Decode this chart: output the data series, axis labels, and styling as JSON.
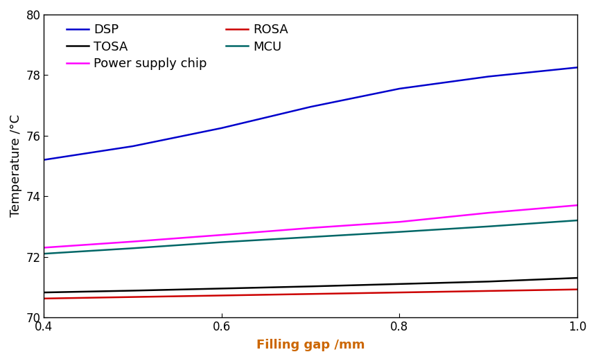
{
  "x": [
    0.4,
    0.5,
    0.6,
    0.7,
    0.8,
    0.9,
    1.0
  ],
  "DSP": [
    75.2,
    75.65,
    76.25,
    76.95,
    77.55,
    77.95,
    78.25
  ],
  "Power_supply_chip": [
    72.3,
    72.5,
    72.72,
    72.95,
    73.15,
    73.45,
    73.7
  ],
  "MCU": [
    72.1,
    72.28,
    72.48,
    72.65,
    72.82,
    73.0,
    73.2
  ],
  "TOSA": [
    70.82,
    70.88,
    70.95,
    71.02,
    71.1,
    71.18,
    71.3
  ],
  "ROSA": [
    70.62,
    70.67,
    70.72,
    70.77,
    70.82,
    70.87,
    70.92
  ],
  "colors": {
    "DSP": "#0000cc",
    "Power_supply_chip": "#ff00ff",
    "MCU": "#006666",
    "TOSA": "#000000",
    "ROSA": "#cc0000"
  },
  "xlabel": "Filling gap /mm",
  "ylabel": "Temperature /°C",
  "xlim": [
    0.4,
    1.0
  ],
  "ylim": [
    70,
    80
  ],
  "xticks": [
    0.4,
    0.6,
    0.8,
    1.0
  ],
  "yticks": [
    70,
    72,
    74,
    76,
    78,
    80
  ],
  "xlabel_color": "#cc6600",
  "linewidth": 1.8,
  "legend_rows": [
    [
      "DSP",
      "TOSA"
    ],
    [
      "Power_supply_chip",
      "ROSA"
    ],
    [
      "MCU"
    ]
  ],
  "legend_labels": {
    "DSP": "DSP",
    "Power_supply_chip": "Power supply chip",
    "MCU": "MCU",
    "TOSA": "TOSA",
    "ROSA": "ROSA"
  }
}
